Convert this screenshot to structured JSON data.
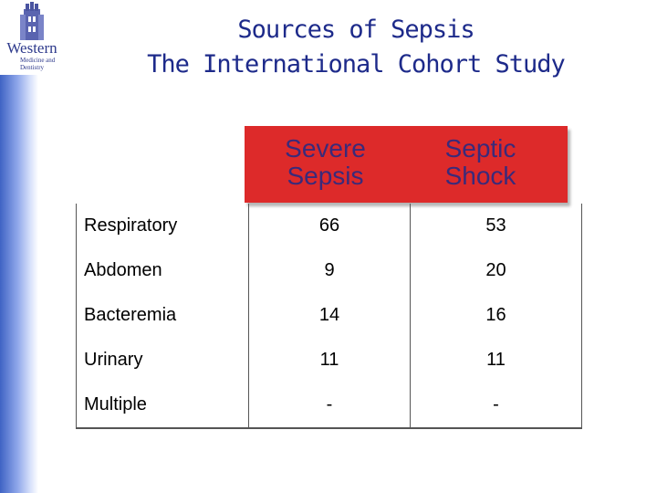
{
  "logo": {
    "word": "Western",
    "sub": "Medicine and Dentistry"
  },
  "title_line1": "Sources of Sepsis",
  "title_line2": "The International Cohort Study",
  "table": {
    "columns": [
      "Severe\nSepsis",
      "Septic\nShock"
    ],
    "rows": [
      {
        "label": "Respiratory",
        "severe_sepsis": "66",
        "septic_shock": "53"
      },
      {
        "label": "Abdomen",
        "severe_sepsis": "9",
        "septic_shock": "20"
      },
      {
        "label": "Bacteremia",
        "severe_sepsis": "14",
        "septic_shock": "16"
      },
      {
        "label": "Urinary",
        "severe_sepsis": "11",
        "septic_shock": "11"
      },
      {
        "label": "Multiple",
        "severe_sepsis": "-",
        "septic_shock": "-"
      }
    ]
  },
  "colors": {
    "header_fill": "#dd2a2a",
    "title_text": "#1d2a8a",
    "side_bar": "#3f63c4"
  }
}
